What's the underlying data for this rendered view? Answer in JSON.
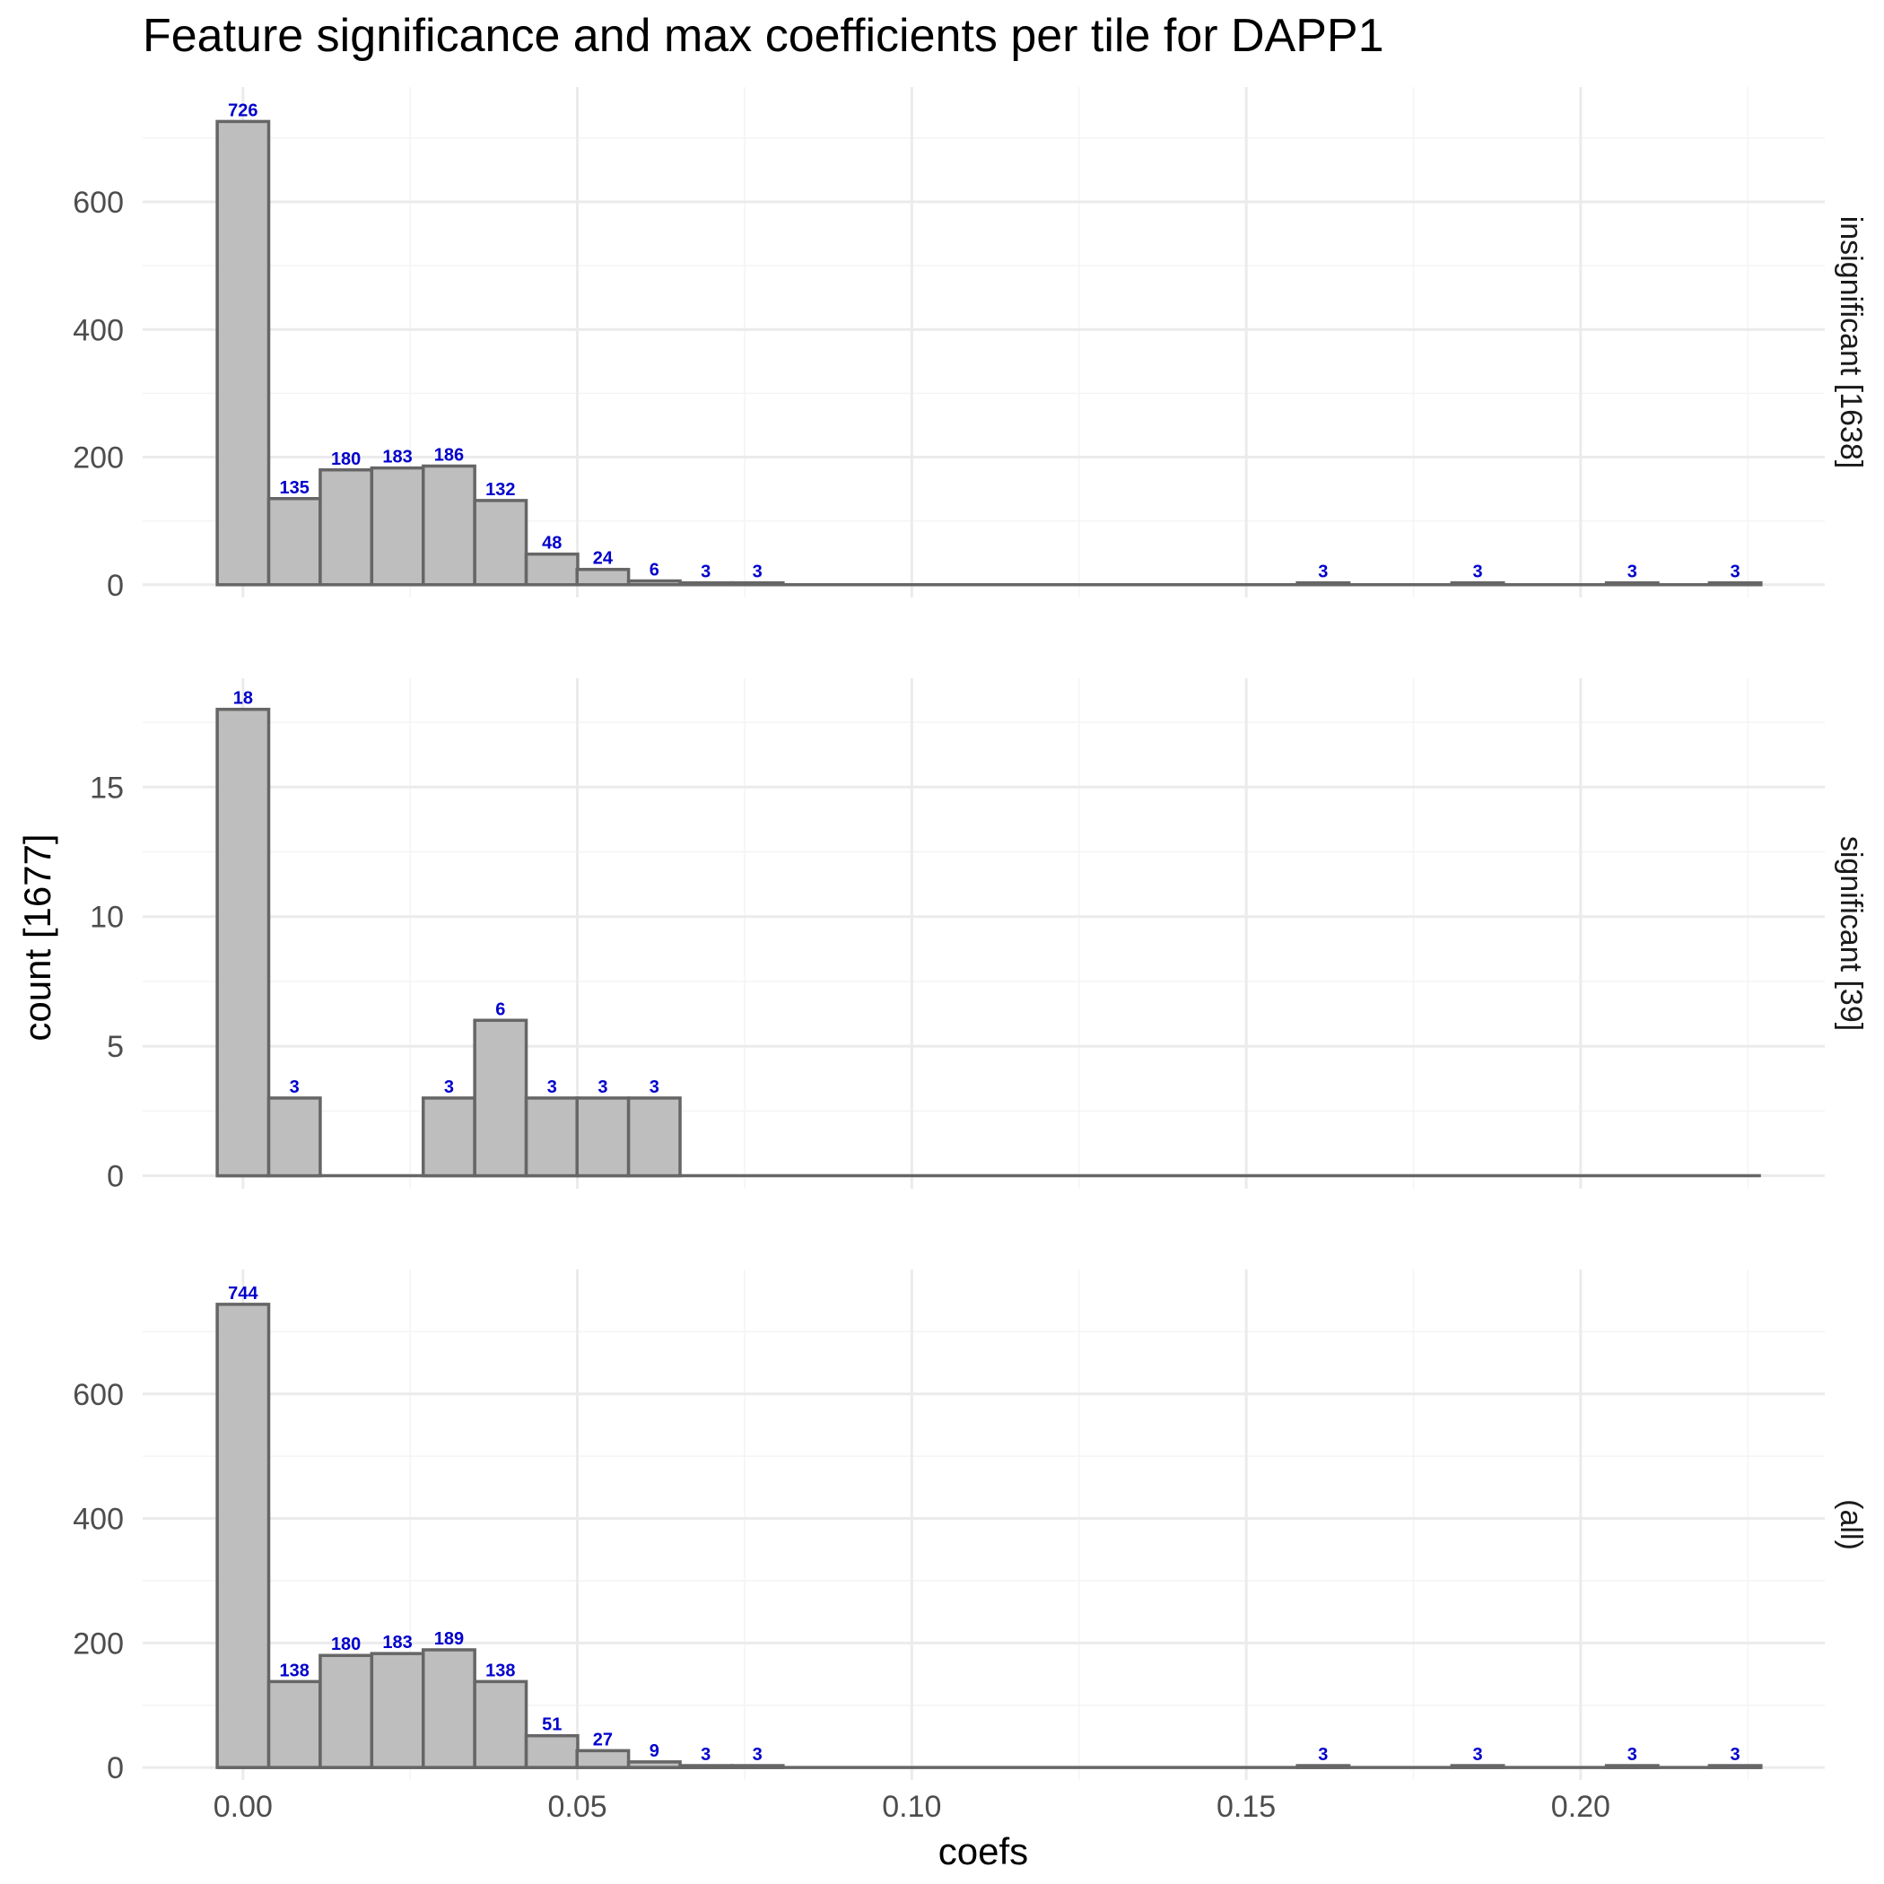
{
  "chart_data": {
    "type": "bar",
    "title": "Feature significance and max coefficients per tile for DAPP1",
    "xlabel": "coefs",
    "ylabel": "count [1677]",
    "xlim": [
      -0.015,
      0.2365
    ],
    "xticks": [
      0.0,
      0.05,
      0.1,
      0.15,
      0.2
    ],
    "xtick_labels": [
      "0.00",
      "0.05",
      "0.10",
      "0.15",
      "0.20"
    ],
    "bin_centers": [
      0.0,
      0.0077,
      0.0154,
      0.0231,
      0.0308,
      0.0385,
      0.0462,
      0.0538,
      0.0615,
      0.0692,
      0.0769,
      0.0846,
      0.0923,
      0.1,
      0.1077,
      0.1154,
      0.1231,
      0.1308,
      0.1385,
      0.1462,
      0.1538,
      0.1615,
      0.1692,
      0.1769,
      0.1846,
      0.1923,
      0.2,
      0.2077,
      0.2154,
      0.2231
    ],
    "grid": true,
    "panels": [
      {
        "strip": "insignificant [1638]",
        "ylim": [
          -20,
          780
        ],
        "yticks": [
          0,
          200,
          400,
          600
        ],
        "ytick_labels": [
          "0",
          "200",
          "400",
          "600"
        ],
        "values": [
          726,
          135,
          180,
          183,
          186,
          132,
          48,
          24,
          6,
          3,
          3,
          0,
          0,
          0,
          0,
          0,
          0,
          0,
          0,
          0,
          0,
          3,
          0,
          0,
          3,
          0,
          0,
          3,
          0,
          3
        ]
      },
      {
        "strip": "significant [39]",
        "ylim": [
          -0.5,
          19.2
        ],
        "yticks": [
          0,
          5,
          10,
          15
        ],
        "ytick_labels": [
          "0",
          "5",
          "10",
          "15"
        ],
        "values": [
          18,
          3,
          0,
          0,
          3,
          6,
          3,
          3,
          3,
          0,
          0,
          0,
          0,
          0,
          0,
          0,
          0,
          0,
          0,
          0,
          0,
          0,
          0,
          0,
          0,
          0,
          0,
          0,
          0,
          0
        ]
      },
      {
        "strip": "(all)",
        "ylim": [
          -20,
          800
        ],
        "yticks": [
          0,
          200,
          400,
          600
        ],
        "ytick_labels": [
          "0",
          "200",
          "400",
          "600"
        ],
        "values": [
          744,
          138,
          180,
          183,
          189,
          138,
          51,
          27,
          9,
          3,
          3,
          0,
          0,
          0,
          0,
          0,
          0,
          0,
          0,
          0,
          0,
          3,
          0,
          0,
          3,
          0,
          0,
          3,
          0,
          3
        ]
      }
    ]
  },
  "colors": {
    "bar_fill": "#bebebe",
    "bar_stroke": "#666666",
    "label": "#0000cc",
    "grid_major": "#ebebeb",
    "grid_minor": "#f4f4f4"
  }
}
